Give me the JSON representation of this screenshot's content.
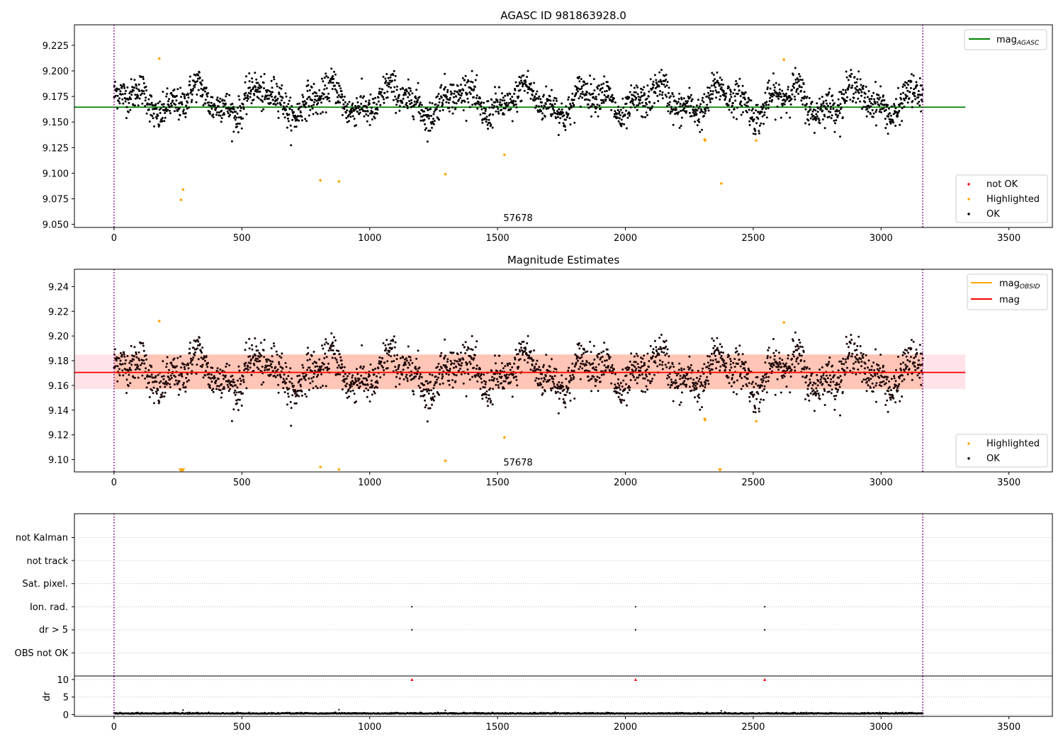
{
  "chart_data": [
    {
      "type": "scatter",
      "title": "AGASC ID 981863928.0",
      "xlim": [
        -155,
        3670
      ],
      "ylim": [
        9.047,
        9.245
      ],
      "xticks": [
        0,
        500,
        1000,
        1500,
        2000,
        2500,
        3000,
        3500
      ],
      "xtick_labels": [
        "0",
        "500",
        "1000",
        "1500",
        "2000",
        "2500",
        "3000",
        "3500"
      ],
      "yticks": [
        9.05,
        9.075,
        9.1,
        9.125,
        9.15,
        9.175,
        9.2,
        9.225
      ],
      "ytick_labels": [
        "9.050",
        "9.075",
        "9.100",
        "9.125",
        "9.150",
        "9.175",
        "9.200",
        "9.225"
      ],
      "obsid_boundaries": [
        0,
        3163
      ],
      "obsid_label": "57678",
      "obsid_label_x": 1575,
      "lines": [
        {
          "name": "mag_AGASC",
          "name_main": "mag",
          "name_sub": "AGASC",
          "y": 9.1645,
          "x_range": [
            -155,
            3330
          ],
          "color": "#008000"
        }
      ],
      "ok_points": {
        "color": "#000000",
        "x_range": [
          0,
          3163
        ],
        "mean": 9.1705,
        "amplitude": 0.012,
        "noise": 0.008,
        "count": 2400
      },
      "highlighted": [
        [
          177,
          9.212
        ],
        [
          262,
          9.074
        ],
        [
          270,
          9.084
        ],
        [
          807,
          9.093
        ],
        [
          880,
          9.092
        ],
        [
          1296,
          9.099
        ],
        [
          1527,
          9.118
        ],
        [
          2310,
          9.133
        ],
        [
          2312,
          9.132
        ],
        [
          2375,
          9.09
        ],
        [
          2512,
          9.132
        ],
        [
          2620,
          9.211
        ]
      ],
      "legend": [
        {
          "label": "not OK",
          "color": "#ff0000"
        },
        {
          "label": "Highlighted",
          "color": "#ffa500"
        },
        {
          "label": "OK",
          "color": "#000000"
        }
      ]
    },
    {
      "type": "scatter",
      "title": "Magnitude Estimates",
      "xlim": [
        -155,
        3670
      ],
      "ylim": [
        9.09,
        9.254
      ],
      "xticks": [
        0,
        500,
        1000,
        1500,
        2000,
        2500,
        3000,
        3500
      ],
      "xtick_labels": [
        "0",
        "500",
        "1000",
        "1500",
        "2000",
        "2500",
        "3000",
        "3500"
      ],
      "yticks": [
        9.1,
        9.12,
        9.14,
        9.16,
        9.18,
        9.2,
        9.22,
        9.24
      ],
      "ytick_labels": [
        "9.10",
        "9.12",
        "9.14",
        "9.16",
        "9.18",
        "9.20",
        "9.22",
        "9.24"
      ],
      "obsid_boundaries": [
        0,
        3163
      ],
      "obsid_label": "57678",
      "obsid_label_x": 1575,
      "bands": [
        {
          "y_range": [
            9.157,
            9.185
          ],
          "x_range": [
            -155,
            3330
          ],
          "color": "#ffc0cb",
          "opacity": 0.45
        },
        {
          "y_range": [
            9.157,
            9.185
          ],
          "x_range": [
            0,
            3163
          ],
          "color": "#ffa07a",
          "opacity": 0.45
        }
      ],
      "lines": [
        {
          "name": "mag_OBSID",
          "name_main": "mag",
          "name_sub": "OBSID",
          "y": 9.1705,
          "x_range": [
            0,
            3163
          ],
          "color": "#ffa500"
        },
        {
          "name": "mag",
          "y": 9.1705,
          "x_range": [
            -155,
            3330
          ],
          "color": "#ff0000"
        }
      ],
      "ok_points": {
        "color": "#000000",
        "x_range": [
          0,
          3163
        ],
        "mean": 9.1705,
        "amplitude": 0.012,
        "noise": 0.008,
        "count": 2400
      },
      "highlighted": [
        [
          177,
          9.212
        ],
        [
          807,
          9.094
        ],
        [
          880,
          9.092
        ],
        [
          1296,
          9.099
        ],
        [
          1527,
          9.118
        ],
        [
          2310,
          9.133
        ],
        [
          2312,
          9.132
        ],
        [
          2512,
          9.131
        ],
        [
          2620,
          9.211
        ]
      ],
      "clipped_markers": [
        260,
        265,
        270,
        2370
      ],
      "legend_lines": [
        {
          "label_main": "mag",
          "label_sub": "OBSID",
          "color": "#ffa500"
        },
        {
          "label_main": "mag",
          "label_sub": "",
          "color": "#ff0000"
        }
      ],
      "legend": [
        {
          "label": "Highlighted",
          "color": "#ffa500"
        },
        {
          "label": "OK",
          "color": "#000000"
        }
      ]
    },
    {
      "type": "scatter",
      "title": "",
      "xlim": [
        -155,
        3670
      ],
      "categories": [
        "OBS not OK",
        "dr > 5",
        "Ion. rad.",
        "Sat. pixel.",
        "not track",
        "not Kalman"
      ],
      "flag_points": [
        {
          "category": "dr > 5",
          "x": [
            1165,
            2040,
            2545
          ]
        },
        {
          "category": "Ion. rad.",
          "x": [
            1165,
            2040,
            2545
          ]
        }
      ],
      "obsid_boundaries": [
        0,
        3163
      ]
    },
    {
      "type": "scatter",
      "title": "",
      "ylabel": "dr",
      "xlim": [
        -155,
        3670
      ],
      "ylim": [
        -0.5,
        11
      ],
      "yticks": [
        0,
        5,
        10
      ],
      "ytick_labels": [
        "0",
        "5",
        "10"
      ],
      "xticks": [
        0,
        500,
        1000,
        1500,
        2000,
        2500,
        3000,
        3500
      ],
      "xtick_labels": [
        "0",
        "500",
        "1000",
        "1500",
        "2000",
        "2500",
        "3000",
        "3500"
      ],
      "dr_base": {
        "x_range": [
          0,
          3163
        ],
        "mean": 0.25,
        "noise": 0.12
      },
      "dr_extra": [
        [
          270,
          1.3
        ],
        [
          880,
          1.4
        ],
        [
          1296,
          1.2
        ],
        [
          2375,
          1.1
        ]
      ],
      "clipped_markers": [
        1165,
        2040,
        2545
      ],
      "obsid_boundaries": [
        0,
        3163
      ]
    }
  ]
}
